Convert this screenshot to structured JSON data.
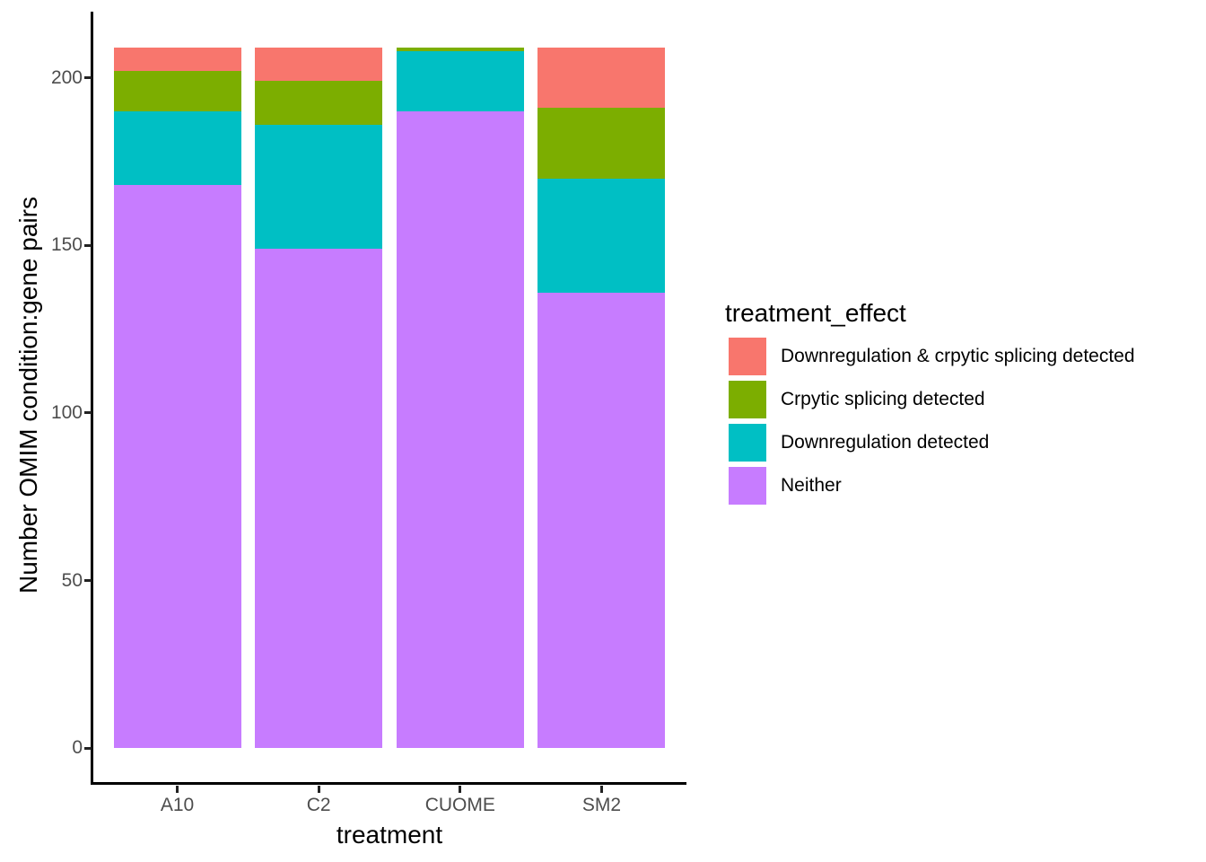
{
  "chart_data": {
    "type": "bar",
    "subtype": "stacked",
    "title": "",
    "xlabel": "treatment",
    "ylabel": "Number OMIM condition:gene pairs",
    "categories": [
      "A10",
      "C2",
      "CUOME",
      "SM2"
    ],
    "series": [
      {
        "name": "Downregulation & crpytic splicing detected",
        "color": "#F8766D",
        "values": [
          7,
          10,
          0,
          18
        ]
      },
      {
        "name": "Crpytic splicing detected",
        "color": "#7CAE00",
        "values": [
          12,
          13,
          1,
          21
        ]
      },
      {
        "name": "Downregulation detected",
        "color": "#00BFC4",
        "values": [
          22,
          37,
          18,
          34
        ]
      },
      {
        "name": "Neither",
        "color": "#C77CFF",
        "values": [
          168,
          149,
          190,
          136
        ]
      }
    ],
    "stacking": "bottom-to-top: Neither, Downregulation detected, Crpytic splicing detected, Downregulation & crpytic splicing detected",
    "y_ticks": [
      0,
      50,
      100,
      150,
      200
    ],
    "ylim": [
      0,
      220
    ],
    "grid": false,
    "legend": {
      "title": "treatment_effect",
      "position": "right"
    },
    "style": {
      "axis_line_color": "#000000",
      "tick_label_color": "#4D4D4D",
      "title_color": "#000000",
      "background": "#FFFFFF"
    }
  }
}
